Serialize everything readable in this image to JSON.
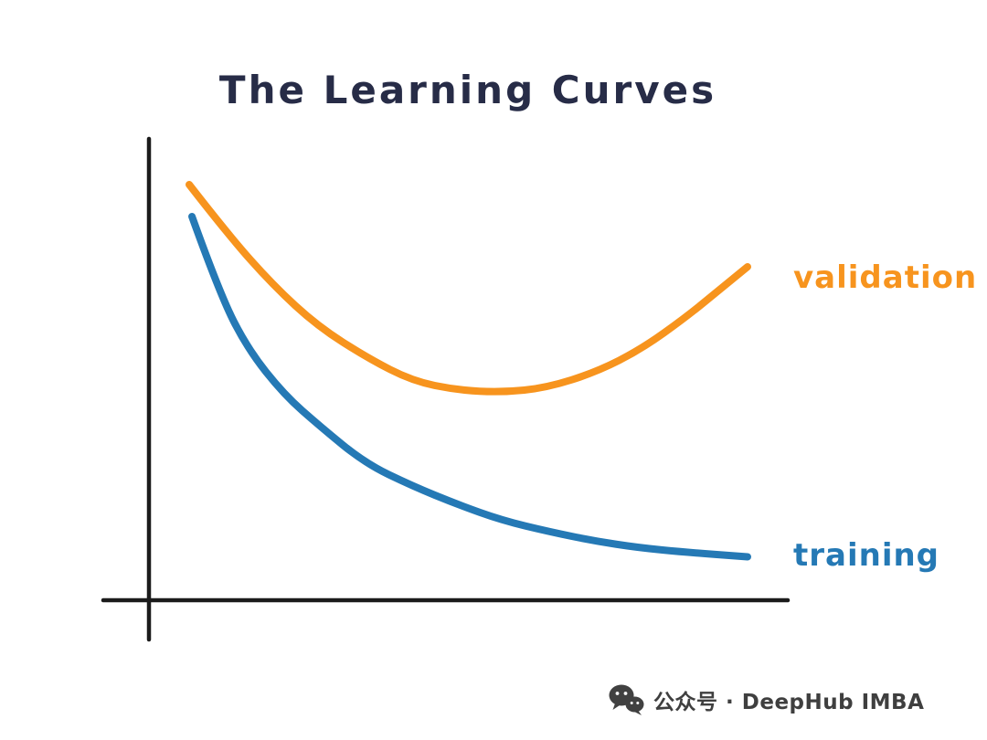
{
  "page": {
    "background": "#ffffff"
  },
  "chart_data": {
    "type": "line",
    "title": "The Learning Curves",
    "title_color": "#272c47",
    "xlabel": "",
    "ylabel": "",
    "xlim": [
      0,
      10
    ],
    "ylim": [
      0,
      1
    ],
    "grid": false,
    "axis_color": "#1b1b1b",
    "legend_position": "labels-at-right-ends-of-lines",
    "series": [
      {
        "name": "validation",
        "color": "#F7941E",
        "x": [
          0,
          0.7,
          1.5,
          2.3,
          3.2,
          4.0,
          4.8,
          5.6,
          6.4,
          7.3,
          8.1,
          8.9,
          9.5,
          10
        ],
        "values": [
          0.91,
          0.8,
          0.69,
          0.6,
          0.53,
          0.48,
          0.46,
          0.455,
          0.465,
          0.5,
          0.55,
          0.62,
          0.68,
          0.73
        ]
      },
      {
        "name": "training",
        "color": "#2579B5",
        "x": [
          0.05,
          0.55,
          1.05,
          1.7,
          2.35,
          3.15,
          4.0,
          4.8,
          5.6,
          6.45,
          7.25,
          8.05,
          8.9,
          10
        ],
        "values": [
          0.84,
          0.67,
          0.55,
          0.45,
          0.38,
          0.3,
          0.25,
          0.21,
          0.175,
          0.15,
          0.13,
          0.115,
          0.105,
          0.095
        ]
      }
    ]
  },
  "watermark": {
    "icon": "wechat-icon",
    "icon_color": "#414141",
    "text": "公众号 · DeepHub IMBA",
    "color": "#3f3f3f"
  }
}
